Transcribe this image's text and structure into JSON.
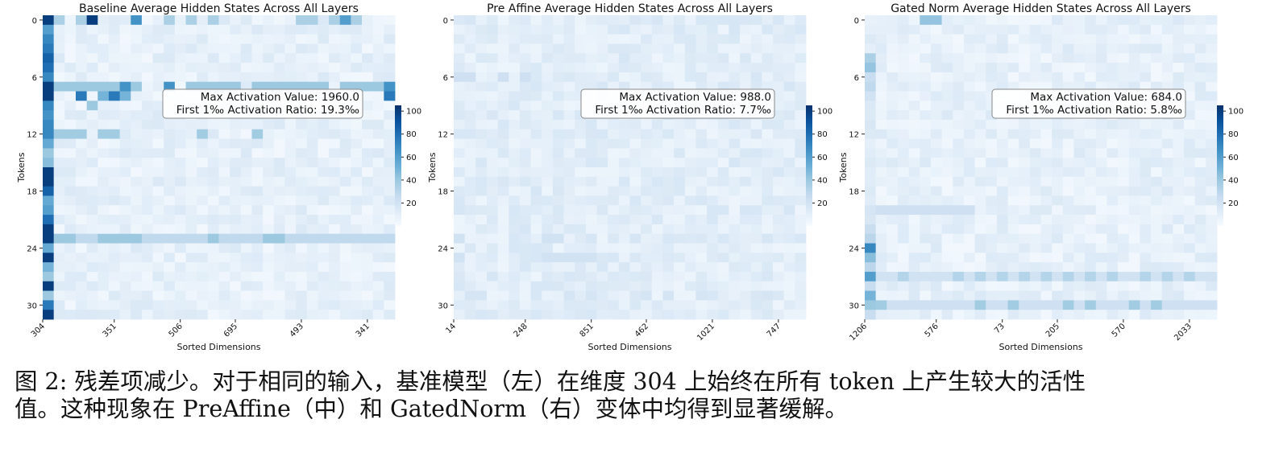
{
  "figure": {
    "colorbar_ticks": [
      "20",
      "40",
      "60",
      "80",
      "100"
    ],
    "colormap": [
      "#f7fbff",
      "#deebf7",
      "#c6dbef",
      "#9ecae1",
      "#6baed6",
      "#4292c6",
      "#2171b5",
      "#08519c",
      "#08306b"
    ]
  },
  "caption": {
    "line1": "图 2: 残差项减少。对于相同的输入，基准模型（左）在维度 304 上始终在所有 token 上产生较大的活性",
    "line2": "值。这种现象在 PreAffine（中）和 GatedNorm（右）变体中均得到显著缓解。"
  },
  "chart_data": [
    {
      "type": "heatmap",
      "title": "Baseline Average Hidden States Across All Layers",
      "xlabel": "Sorted Dimensions",
      "ylabel": "Tokens",
      "rows": 32,
      "cols": 32,
      "y_ticks": [
        "0",
        "6",
        "12",
        "18",
        "24",
        "30"
      ],
      "x_ticks": [
        "304",
        "351",
        "506",
        "695",
        "493",
        "341"
      ],
      "colorbar_range": [
        0,
        105
      ],
      "annotation": {
        "line1": "Max Activation Value: 1960.0",
        "line2": "First 1‰ Activation Ratio: 19.3‰"
      },
      "background_level": 3,
      "strong_cells": [
        {
          "row": 0,
          "cols": [
            4
          ],
          "value": 100
        },
        {
          "row": 0,
          "cols": [
            8
          ],
          "value": 65
        },
        {
          "row": 0,
          "cols": [
            1,
            3,
            11,
            13,
            15,
            23,
            24,
            26,
            27,
            28
          ],
          "value": 35
        },
        {
          "row": 0,
          "cols": [
            27
          ],
          "value": 60
        },
        {
          "row": 7,
          "cols": [
            1,
            2,
            3,
            4,
            5,
            6,
            8,
            11,
            13,
            14,
            15,
            16,
            17,
            19,
            20,
            21,
            22,
            23,
            24,
            25,
            27,
            28,
            29,
            30
          ],
          "value": 40
        },
        {
          "row": 7,
          "cols": [
            7,
            11,
            31
          ],
          "value": 65
        },
        {
          "row": 8,
          "cols": [
            3,
            6,
            31
          ],
          "value": 75
        },
        {
          "row": 8,
          "cols": [
            5,
            7
          ],
          "value": 50
        },
        {
          "row": 9,
          "cols": [
            4
          ],
          "value": 40
        },
        {
          "row": 12,
          "cols": [
            1,
            2,
            3,
            5,
            6,
            14,
            19
          ],
          "value": 38
        },
        {
          "row": 23,
          "cols": [
            1,
            2,
            3,
            4,
            5,
            6,
            7,
            8,
            9,
            10,
            11,
            12,
            13,
            14,
            15,
            16,
            17,
            18,
            19,
            20,
            21,
            22,
            23,
            24,
            25,
            26,
            27,
            28,
            29,
            30,
            31
          ],
          "value": 28
        },
        {
          "row": 23,
          "cols": [
            1,
            2,
            5,
            6,
            7,
            8,
            15,
            20,
            21
          ],
          "value": 40
        }
      ],
      "column_emphasis": {
        "col": 0,
        "values": [
          100,
          60,
          70,
          75,
          85,
          80,
          70,
          100,
          100,
          70,
          65,
          70,
          70,
          55,
          40,
          45,
          100,
          100,
          85,
          55,
          60,
          80,
          100,
          100,
          55,
          100,
          50,
          40,
          100,
          40,
          75,
          100
        ]
      }
    },
    {
      "type": "heatmap",
      "title": "Pre Affine Average Hidden States Across All Layers",
      "xlabel": "Sorted Dimensions",
      "ylabel": "Tokens",
      "rows": 32,
      "cols": 32,
      "y_ticks": [
        "0",
        "6",
        "12",
        "18",
        "24",
        "30"
      ],
      "x_ticks": [
        "14",
        "248",
        "851",
        "462",
        "1021",
        "747"
      ],
      "colorbar_range": [
        0,
        105
      ],
      "annotation": {
        "line1": "Max Activation Value: 988.0",
        "line2": "First 1‰ Activation Ratio: 7.7‰"
      },
      "background_level": 5,
      "strong_cells": [
        {
          "row": 6,
          "cols": [
            0,
            1,
            4,
            6
          ],
          "value": 22
        },
        {
          "row": 23,
          "cols": [
            0,
            8,
            9
          ],
          "value": 20
        },
        {
          "row": 25,
          "cols": [
            0,
            8,
            9,
            10,
            11,
            12
          ],
          "value": 20
        },
        {
          "row": 29,
          "cols": [
            1,
            2,
            10,
            12,
            17,
            19,
            22,
            28
          ],
          "value": 18
        }
      ],
      "column_emphasis": {
        "col": 0,
        "values": []
      }
    },
    {
      "type": "heatmap",
      "title": "Gated Norm Average Hidden States Across All Layers",
      "xlabel": "Sorted Dimensions",
      "ylabel": "Tokens",
      "rows": 32,
      "cols": 32,
      "y_ticks": [
        "0",
        "6",
        "12",
        "18",
        "24",
        "30"
      ],
      "x_ticks": [
        "1206",
        "576",
        "73",
        "205",
        "570",
        "2033"
      ],
      "colorbar_range": [
        0,
        105
      ],
      "annotation": {
        "line1": "Max Activation Value: 684.0",
        "line2": "First 1‰ Activation Ratio: 5.8‰"
      },
      "background_level": 3,
      "strong_cells": [
        {
          "row": 0,
          "cols": [
            5,
            6
          ],
          "value": 42
        },
        {
          "row": 20,
          "cols": [
            0,
            1,
            2,
            3,
            4,
            5,
            6,
            7,
            8,
            9
          ],
          "value": 22
        },
        {
          "row": 27,
          "cols": [
            0,
            1,
            2,
            3,
            4,
            5,
            6,
            7,
            8,
            9,
            10,
            11,
            12,
            13,
            14,
            15,
            16,
            17,
            18,
            19,
            20,
            21,
            22,
            23,
            24,
            25,
            26,
            27,
            28,
            29,
            30,
            31
          ],
          "value": 20
        },
        {
          "row": 27,
          "cols": [
            3,
            8,
            10,
            12,
            14,
            16,
            18,
            20,
            22,
            25,
            27,
            29
          ],
          "value": 32
        },
        {
          "row": 30,
          "cols": [
            0,
            1,
            2,
            3,
            4,
            5,
            6,
            7,
            8,
            9,
            10,
            11,
            12,
            13,
            14,
            15,
            16,
            17,
            18,
            19,
            20,
            21,
            22,
            23,
            24,
            25,
            26,
            27,
            28,
            29,
            30,
            31
          ],
          "value": 22
        },
        {
          "row": 30,
          "cols": [
            1,
            10,
            13,
            18,
            20,
            24,
            26
          ],
          "value": 38
        }
      ],
      "column_emphasis": {
        "col": 0,
        "values": [
          8,
          10,
          14,
          10,
          35,
          42,
          25,
          28,
          20,
          15,
          14,
          16,
          14,
          10,
          12,
          14,
          12,
          12,
          14,
          12,
          18,
          16,
          24,
          30,
          70,
          45,
          30,
          60,
          25,
          50,
          40,
          25
        ]
      }
    }
  ]
}
